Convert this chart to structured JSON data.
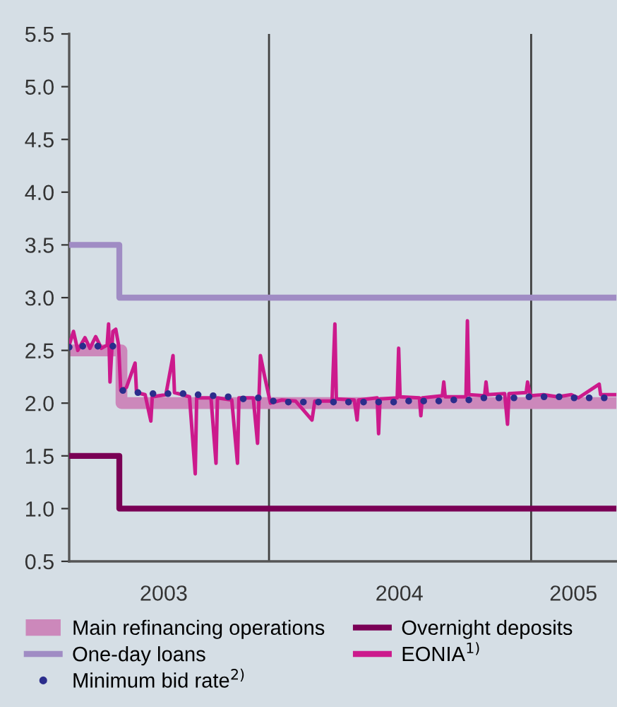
{
  "chart_data": {
    "type": "line",
    "xlim": [
      "2003-03-28",
      "2005-04-30"
    ],
    "xticks": [
      {
        "value": "2003-08-07",
        "label": "2003"
      },
      {
        "value": "2004-07-01",
        "label": "2004"
      },
      {
        "value": "2005-03-01",
        "label": "2005"
      }
    ],
    "ylim": [
      0.5,
      5.5
    ],
    "yticks": [
      {
        "value": 0.5,
        "label": "0.5"
      },
      {
        "value": 1,
        "label": "1.0"
      },
      {
        "value": 1.5,
        "label": "1.5"
      },
      {
        "value": 2,
        "label": "2.0"
      },
      {
        "value": 2.5,
        "label": "2.5"
      },
      {
        "value": 3,
        "label": "3.0"
      },
      {
        "value": 3.5,
        "label": "3.5"
      },
      {
        "value": 4,
        "label": "4.0"
      },
      {
        "value": 4.5,
        "label": "4.5"
      },
      {
        "value": 5,
        "label": "5.0"
      },
      {
        "value": 5.5,
        "label": "5.5"
      }
    ],
    "grid": false,
    "legend": "bottom",
    "ref_lines": [
      {
        "axis": "x",
        "value": "2004-01-01",
        "color": "#404040"
      },
      {
        "axis": "x",
        "value": "2005-01-01",
        "color": "#404040"
      }
    ],
    "series": [
      {
        "name": "Main refinancing operations",
        "type": "step",
        "color": "#cc88bb",
        "x": [
          "2003-03-28",
          "2003-06-09",
          "2005-04-30"
        ],
        "values": [
          2.5,
          2.0,
          2.0
        ]
      },
      {
        "name": "One-day loans",
        "type": "step",
        "color": "#a08cc4",
        "x": [
          "2003-03-28",
          "2003-06-06",
          "2005-04-30"
        ],
        "values": [
          3.5,
          3.0,
          3.0
        ]
      },
      {
        "name": "Minimum bid rate$^{2)}$",
        "type": "scatter",
        "color": "#2b2d8c",
        "x": [
          "2003-03-28",
          "2003-04-16",
          "2003-05-07",
          "2003-05-28",
          "2003-06-11",
          "2003-07-02",
          "2003-07-23",
          "2003-08-13",
          "2003-09-03",
          "2003-09-24",
          "2003-10-15",
          "2003-11-05",
          "2003-11-26",
          "2003-12-17",
          "2004-01-07",
          "2004-01-28",
          "2004-02-18",
          "2004-03-10",
          "2004-03-31",
          "2004-04-21",
          "2004-05-12",
          "2004-06-02",
          "2004-06-23",
          "2004-07-14",
          "2004-08-04",
          "2004-08-25",
          "2004-09-15",
          "2004-10-06",
          "2004-10-27",
          "2004-11-17",
          "2004-12-08",
          "2004-12-29",
          "2005-01-19",
          "2005-02-09",
          "2005-03-02",
          "2005-03-23",
          "2005-04-13"
        ],
        "values": [
          2.53,
          2.54,
          2.54,
          2.54,
          2.12,
          2.1,
          2.09,
          2.09,
          2.09,
          2.08,
          2.07,
          2.06,
          2.04,
          2.05,
          2.02,
          2.01,
          2.01,
          2.01,
          2.01,
          2.01,
          2.01,
          2.01,
          2.01,
          2.02,
          2.02,
          2.02,
          2.03,
          2.03,
          2.05,
          2.05,
          2.05,
          2.06,
          2.06,
          2.06,
          2.05,
          2.05,
          2.05
        ]
      },
      {
        "name": "Overnight deposits",
        "type": "step",
        "color": "#7a0055",
        "x": [
          "2003-03-28",
          "2003-06-06",
          "2005-04-30"
        ],
        "values": [
          1.5,
          1.0,
          1.0
        ]
      },
      {
        "name": "EONIA$^{1)}$",
        "color": "#cc1a8c",
        "x": [
          "2003-03-28",
          "2003-04-03",
          "2003-04-09",
          "2003-04-19",
          "2003-04-26",
          "2003-05-04",
          "2003-05-12",
          "2003-05-20",
          "2003-05-22",
          "2003-05-24",
          "2003-05-28",
          "2003-06-01",
          "2003-06-05",
          "2003-06-08",
          "2003-06-16",
          "2003-06-28",
          "2003-06-30",
          "2003-07-12",
          "2003-07-20",
          "2003-07-22",
          "2003-08-10",
          "2003-08-20",
          "2003-08-22",
          "2003-09-12",
          "2003-09-20",
          "2003-09-22",
          "2003-10-12",
          "2003-10-19",
          "2003-10-21",
          "2003-11-10",
          "2003-11-18",
          "2003-11-20",
          "2003-12-10",
          "2003-12-16",
          "2003-12-18",
          "2003-12-20",
          "2003-12-26",
          "2004-01-03",
          "2004-01-19",
          "2004-02-07",
          "2004-03-01",
          "2004-03-05",
          "2004-03-29",
          "2004-04-02",
          "2004-04-04",
          "2004-04-29",
          "2004-05-03",
          "2004-05-05",
          "2004-05-31",
          "2004-06-02",
          "2004-06-04",
          "2004-06-28",
          "2004-06-30",
          "2004-07-02",
          "2004-07-29",
          "2004-07-31",
          "2004-08-02",
          "2004-08-30",
          "2004-09-01",
          "2004-09-03",
          "2004-10-02",
          "2004-10-04",
          "2004-10-06",
          "2004-10-28",
          "2004-10-30",
          "2004-11-01",
          "2004-11-25",
          "2004-11-29",
          "2004-12-01",
          "2004-12-25",
          "2004-12-27",
          "2004-12-31",
          "2005-01-18",
          "2005-02-07",
          "2005-02-26",
          "2005-03-08",
          "2005-04-06",
          "2005-04-08",
          "2005-04-30"
        ],
        "values": [
          2.55,
          2.68,
          2.5,
          2.62,
          2.52,
          2.63,
          2.52,
          2.55,
          2.75,
          2.2,
          2.68,
          2.7,
          2.55,
          2.12,
          2.15,
          2.38,
          2.1,
          2.08,
          1.83,
          2.06,
          2.08,
          2.45,
          2.1,
          2.06,
          1.33,
          2.05,
          2.05,
          1.43,
          2.05,
          2.03,
          1.43,
          2.05,
          2.05,
          1.62,
          2.05,
          2.45,
          2.25,
          2.0,
          2.03,
          2.02,
          1.84,
          2.02,
          2.02,
          2.75,
          2.04,
          2.03,
          1.84,
          2.03,
          2.05,
          1.71,
          2.04,
          2.05,
          2.52,
          2.06,
          2.05,
          1.88,
          2.05,
          2.07,
          2.2,
          2.06,
          2.06,
          2.78,
          2.08,
          2.07,
          2.2,
          2.08,
          2.09,
          1.8,
          2.09,
          2.1,
          2.2,
          2.07,
          2.08,
          2.06,
          2.08,
          2.05,
          2.18,
          2.08,
          2.08
        ]
      }
    ]
  }
}
